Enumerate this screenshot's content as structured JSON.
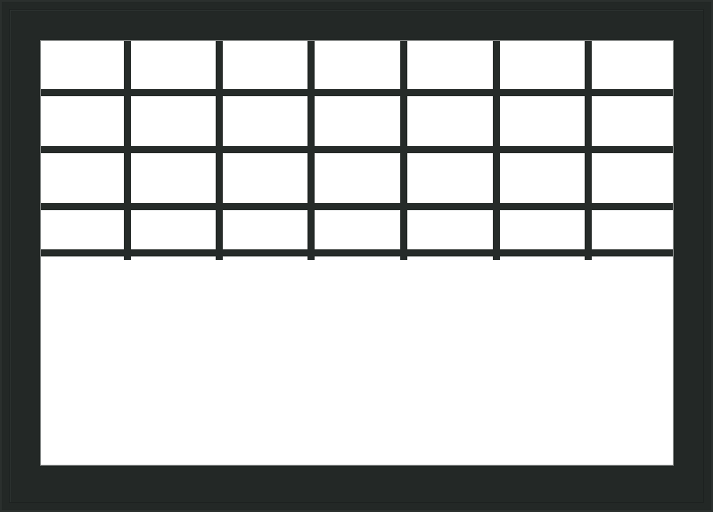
{
  "window": {
    "frame_color": "#232826",
    "glass_color": "#ffffff",
    "grille_color": "#262b29",
    "grille_columns": 7,
    "grille_rows": 4
  }
}
